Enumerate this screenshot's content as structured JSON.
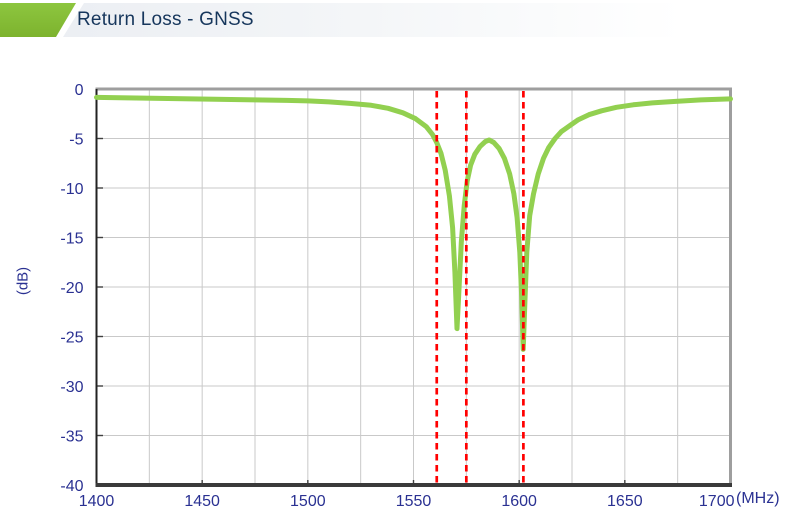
{
  "header": {
    "title": "Return Loss - GNSS",
    "accent_color": "#8dc63f",
    "accent_color_dark": "#7db32e",
    "title_color": "#16365c"
  },
  "chart_data": {
    "type": "line",
    "title": "Return Loss - GNSS",
    "xlabel": "(MHz)",
    "ylabel": "(dB)",
    "xlim": [
      1400,
      1700
    ],
    "ylim": [
      -40,
      0
    ],
    "x_ticks": [
      1400,
      1450,
      1500,
      1550,
      1600,
      1650,
      1700
    ],
    "x_minor_step": 25,
    "y_ticks": [
      0,
      -5,
      -10,
      -15,
      -20,
      -25,
      -30,
      -35,
      -40
    ],
    "grid": true,
    "legend": "none",
    "grid_color": "#c9c9c9",
    "tick_label_color": "#2a3192",
    "axis_color": "#222222",
    "border_color": "#9e9e9e",
    "series": [
      {
        "name": "Return Loss",
        "color": "#92d050",
        "line_width": 5,
        "points": [
          [
            1400,
            -0.85
          ],
          [
            1415,
            -0.9
          ],
          [
            1430,
            -0.95
          ],
          [
            1445,
            -1.0
          ],
          [
            1460,
            -1.05
          ],
          [
            1475,
            -1.1
          ],
          [
            1490,
            -1.15
          ],
          [
            1500,
            -1.2
          ],
          [
            1510,
            -1.3
          ],
          [
            1520,
            -1.45
          ],
          [
            1530,
            -1.65
          ],
          [
            1538,
            -1.95
          ],
          [
            1545,
            -2.4
          ],
          [
            1551,
            -3.0
          ],
          [
            1556,
            -3.8
          ],
          [
            1559,
            -4.6
          ],
          [
            1561,
            -5.4
          ],
          [
            1563,
            -6.5
          ],
          [
            1565,
            -8.2
          ],
          [
            1567,
            -10.8
          ],
          [
            1568.5,
            -14
          ],
          [
            1569.6,
            -18.5
          ],
          [
            1570.6,
            -24.2
          ],
          [
            1571.6,
            -20
          ],
          [
            1572.6,
            -15.5
          ],
          [
            1574,
            -11.8
          ],
          [
            1575.4,
            -9.3
          ],
          [
            1577,
            -7.7
          ],
          [
            1579,
            -6.6
          ],
          [
            1581.5,
            -5.8
          ],
          [
            1584,
            -5.3
          ],
          [
            1585.8,
            -5.15
          ],
          [
            1588,
            -5.4
          ],
          [
            1590.5,
            -6.0
          ],
          [
            1593,
            -7.0
          ],
          [
            1595.5,
            -8.6
          ],
          [
            1597.5,
            -10.6
          ],
          [
            1599,
            -13
          ],
          [
            1600.3,
            -16.5
          ],
          [
            1601.2,
            -21
          ],
          [
            1601.9,
            -26.3
          ],
          [
            1602.7,
            -21.5
          ],
          [
            1603.6,
            -16.5
          ],
          [
            1605,
            -12.8
          ],
          [
            1606.8,
            -10.6
          ],
          [
            1609,
            -8.6
          ],
          [
            1611.5,
            -7.0
          ],
          [
            1614,
            -5.9
          ],
          [
            1617,
            -5.0
          ],
          [
            1620,
            -4.3
          ],
          [
            1624,
            -3.7
          ],
          [
            1628,
            -3.1
          ],
          [
            1633,
            -2.6
          ],
          [
            1639,
            -2.2
          ],
          [
            1646,
            -1.85
          ],
          [
            1654,
            -1.6
          ],
          [
            1663,
            -1.4
          ],
          [
            1674,
            -1.25
          ],
          [
            1686,
            -1.1
          ],
          [
            1700,
            -1.0
          ]
        ]
      }
    ],
    "marker_lines": {
      "x": [
        1561,
        1575,
        1602
      ],
      "color": "#ff0000",
      "style": "dashed"
    }
  }
}
